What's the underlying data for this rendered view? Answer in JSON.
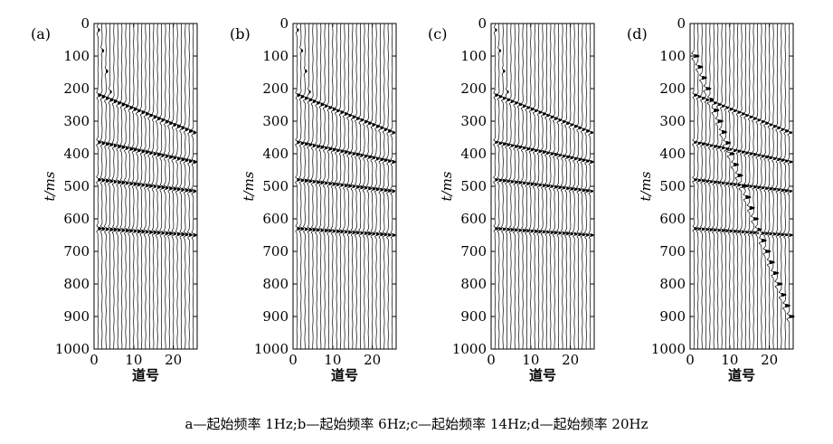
{
  "caption": "a—起始频率 1Hz;b—起始频率 6Hz;c—起始频率 14Hz;d—起始频率 20Hz",
  "chart_data": [
    {
      "type": "line",
      "panel_label": "(a)",
      "xlabel": "道号",
      "ylabel": "t/ms",
      "xlim": [
        0,
        26
      ],
      "ylim": [
        0,
        1000
      ],
      "y_inverted": true,
      "xticks": [
        0,
        10,
        20
      ],
      "yticks": [
        0,
        100,
        200,
        300,
        400,
        500,
        600,
        700,
        800,
        900,
        1000
      ],
      "trace_count": 25,
      "events": [
        {
          "x": [
            1,
            25
          ],
          "y": [
            220,
            335
          ]
        },
        {
          "x": [
            1,
            25
          ],
          "y": [
            365,
            425
          ]
        },
        {
          "x": [
            1,
            25
          ],
          "y": [
            480,
            515
          ]
        },
        {
          "x": [
            1,
            25
          ],
          "y": [
            630,
            650
          ]
        }
      ],
      "direct_wave": {
        "x": [
          1,
          4
        ],
        "y": [
          20,
          210
        ]
      }
    },
    {
      "type": "line",
      "panel_label": "(b)",
      "xlabel": "道号",
      "ylabel": "t/ms",
      "xlim": [
        0,
        26
      ],
      "ylim": [
        0,
        1000
      ],
      "y_inverted": true,
      "xticks": [
        0,
        10,
        20
      ],
      "yticks": [
        0,
        100,
        200,
        300,
        400,
        500,
        600,
        700,
        800,
        900,
        1000
      ],
      "trace_count": 25,
      "events": [
        {
          "x": [
            1,
            25
          ],
          "y": [
            220,
            335
          ]
        },
        {
          "x": [
            1,
            25
          ],
          "y": [
            365,
            425
          ]
        },
        {
          "x": [
            1,
            25
          ],
          "y": [
            480,
            515
          ]
        },
        {
          "x": [
            1,
            25
          ],
          "y": [
            630,
            650
          ]
        }
      ],
      "direct_wave": {
        "x": [
          1,
          4
        ],
        "y": [
          20,
          210
        ]
      }
    },
    {
      "type": "line",
      "panel_label": "(c)",
      "xlabel": "道号",
      "ylabel": "t/ms",
      "xlim": [
        0,
        26
      ],
      "ylim": [
        0,
        1000
      ],
      "y_inverted": true,
      "xticks": [
        0,
        10,
        20
      ],
      "yticks": [
        0,
        100,
        200,
        300,
        400,
        500,
        600,
        700,
        800,
        900,
        1000
      ],
      "trace_count": 25,
      "events": [
        {
          "x": [
            1,
            25
          ],
          "y": [
            220,
            335
          ]
        },
        {
          "x": [
            1,
            25
          ],
          "y": [
            365,
            425
          ]
        },
        {
          "x": [
            1,
            25
          ],
          "y": [
            480,
            515
          ]
        },
        {
          "x": [
            1,
            25
          ],
          "y": [
            630,
            650
          ]
        }
      ],
      "direct_wave": {
        "x": [
          1,
          4
        ],
        "y": [
          20,
          210
        ]
      }
    },
    {
      "type": "line",
      "panel_label": "(d)",
      "xlabel": "道号",
      "ylabel": "t/ms",
      "xlim": [
        0,
        26
      ],
      "ylim": [
        0,
        1000
      ],
      "y_inverted": true,
      "xticks": [
        0,
        10,
        20
      ],
      "yticks": [
        0,
        100,
        200,
        300,
        400,
        500,
        600,
        700,
        800,
        900,
        1000
      ],
      "trace_count": 25,
      "events": [
        {
          "x": [
            1,
            25
          ],
          "y": [
            220,
            335
          ]
        },
        {
          "x": [
            1,
            25
          ],
          "y": [
            365,
            425
          ]
        },
        {
          "x": [
            1,
            25
          ],
          "y": [
            480,
            515
          ]
        },
        {
          "x": [
            1,
            25
          ],
          "y": [
            630,
            650
          ]
        }
      ],
      "direct_wave": {
        "x": [
          1,
          25
        ],
        "y": [
          100,
          900
        ]
      }
    }
  ]
}
